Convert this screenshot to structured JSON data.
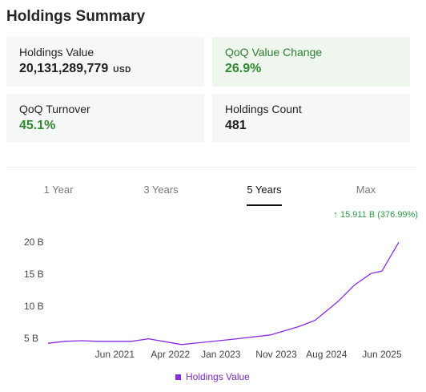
{
  "page": {
    "title": "Holdings Summary"
  },
  "cards": {
    "holdings_value": {
      "label": "Holdings Value",
      "value": "20,131,289,779",
      "unit": "USD"
    },
    "qoq_value_change": {
      "label": "QoQ Value Change",
      "value": "26.9%"
    },
    "qoq_turnover": {
      "label": "QoQ Turnover",
      "value": "45.1%"
    },
    "holdings_count": {
      "label": "Holdings Count",
      "value": "481"
    }
  },
  "tabs": [
    {
      "label": "1 Year",
      "active": false
    },
    {
      "label": "3 Years",
      "active": false
    },
    {
      "label": "5 Years",
      "active": true
    },
    {
      "label": "Max",
      "active": false
    }
  ],
  "change_indicator": {
    "text": "15.911 B (376.99%)",
    "arrow": "up-arrow-icon",
    "color": "#2e9e44"
  },
  "legend": {
    "label": "Holdings Value",
    "color": "#8a2be2"
  },
  "chart_data": {
    "type": "line",
    "series": [
      {
        "name": "Holdings Value",
        "color": "#8a2be2",
        "points": [
          {
            "x": "2020-06-30",
            "y": 4.2
          },
          {
            "x": "2020-09-30",
            "y": 4.5
          },
          {
            "x": "2020-12-31",
            "y": 4.6
          },
          {
            "x": "2021-03-31",
            "y": 4.5
          },
          {
            "x": "2021-06-30",
            "y": 4.5
          },
          {
            "x": "2021-09-30",
            "y": 4.5
          },
          {
            "x": "2021-12-31",
            "y": 4.9
          },
          {
            "x": "2022-03-31",
            "y": 4.45
          },
          {
            "x": "2022-06-30",
            "y": 4.0
          },
          {
            "x": "2023-03-31",
            "y": 4.8
          },
          {
            "x": "2023-10-31",
            "y": 5.5
          },
          {
            "x": "2024-03-31",
            "y": 6.8
          },
          {
            "x": "2024-06-30",
            "y": 7.8
          },
          {
            "x": "2024-10-31",
            "y": 10.7
          },
          {
            "x": "2025-01-31",
            "y": 13.3
          },
          {
            "x": "2025-04-30",
            "y": 15.1
          },
          {
            "x": "2025-06-30",
            "y": 15.5
          },
          {
            "x": "2025-09-30",
            "y": 20.0
          }
        ]
      }
    ],
    "x_ticks": [
      {
        "x": "2021-06-30",
        "label": "Jun 2021"
      },
      {
        "x": "2022-04-30",
        "label": "Apr 2022"
      },
      {
        "x": "2023-01-31",
        "label": "Jan 2023"
      },
      {
        "x": "2023-11-30",
        "label": "Nov 2023"
      },
      {
        "x": "2024-08-31",
        "label": "Aug 2024"
      },
      {
        "x": "2025-06-30",
        "label": "Jun 2025"
      }
    ],
    "y_ticks": [
      {
        "value": 5,
        "label": "5 B"
      },
      {
        "value": 10,
        "label": "10 B"
      },
      {
        "value": 15,
        "label": "15 B"
      },
      {
        "value": 20,
        "label": "20 B"
      }
    ],
    "xlim": [
      "2020-06-30",
      "2025-09-30"
    ],
    "ylim": [
      3.6,
      20.4
    ],
    "grid": false,
    "legend_position": "bottom-center"
  }
}
